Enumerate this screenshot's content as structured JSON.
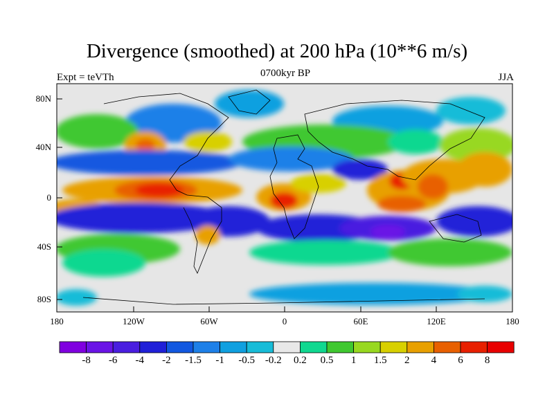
{
  "title": "Divergence (smoothed) at 200 hPa (10**6 m/s)",
  "subtitle_left": "Expt = teVTh",
  "subtitle_center": "0700kyr BP",
  "subtitle_right": "JJA",
  "axes": {
    "lat_ticks": [
      "80N",
      "40N",
      "0",
      "40S",
      "80S"
    ],
    "lon_ticks": [
      "180",
      "120W",
      "60W",
      "0",
      "60E",
      "120E",
      "180"
    ]
  },
  "colorbar": {
    "labels": [
      "-8",
      "-6",
      "-4",
      "-2",
      "-1.5",
      "-1",
      "-0.5",
      "-0.2",
      "0.2",
      "0.5",
      "1",
      "1.5",
      "2",
      "4",
      "6",
      "8"
    ],
    "colors": [
      "#8000e0",
      "#6a14e6",
      "#4a1ee0",
      "#2020d8",
      "#1258e0",
      "#1e80e8",
      "#10a0e0",
      "#18bcd8",
      "#e8e8e8",
      "#10d890",
      "#40c830",
      "#98d820",
      "#d8d000",
      "#e8a000",
      "#e86000",
      "#e82000",
      "#e80000"
    ]
  },
  "colors": {
    "land_outline": "#000000",
    "neutral": "#e6e6e6"
  }
}
